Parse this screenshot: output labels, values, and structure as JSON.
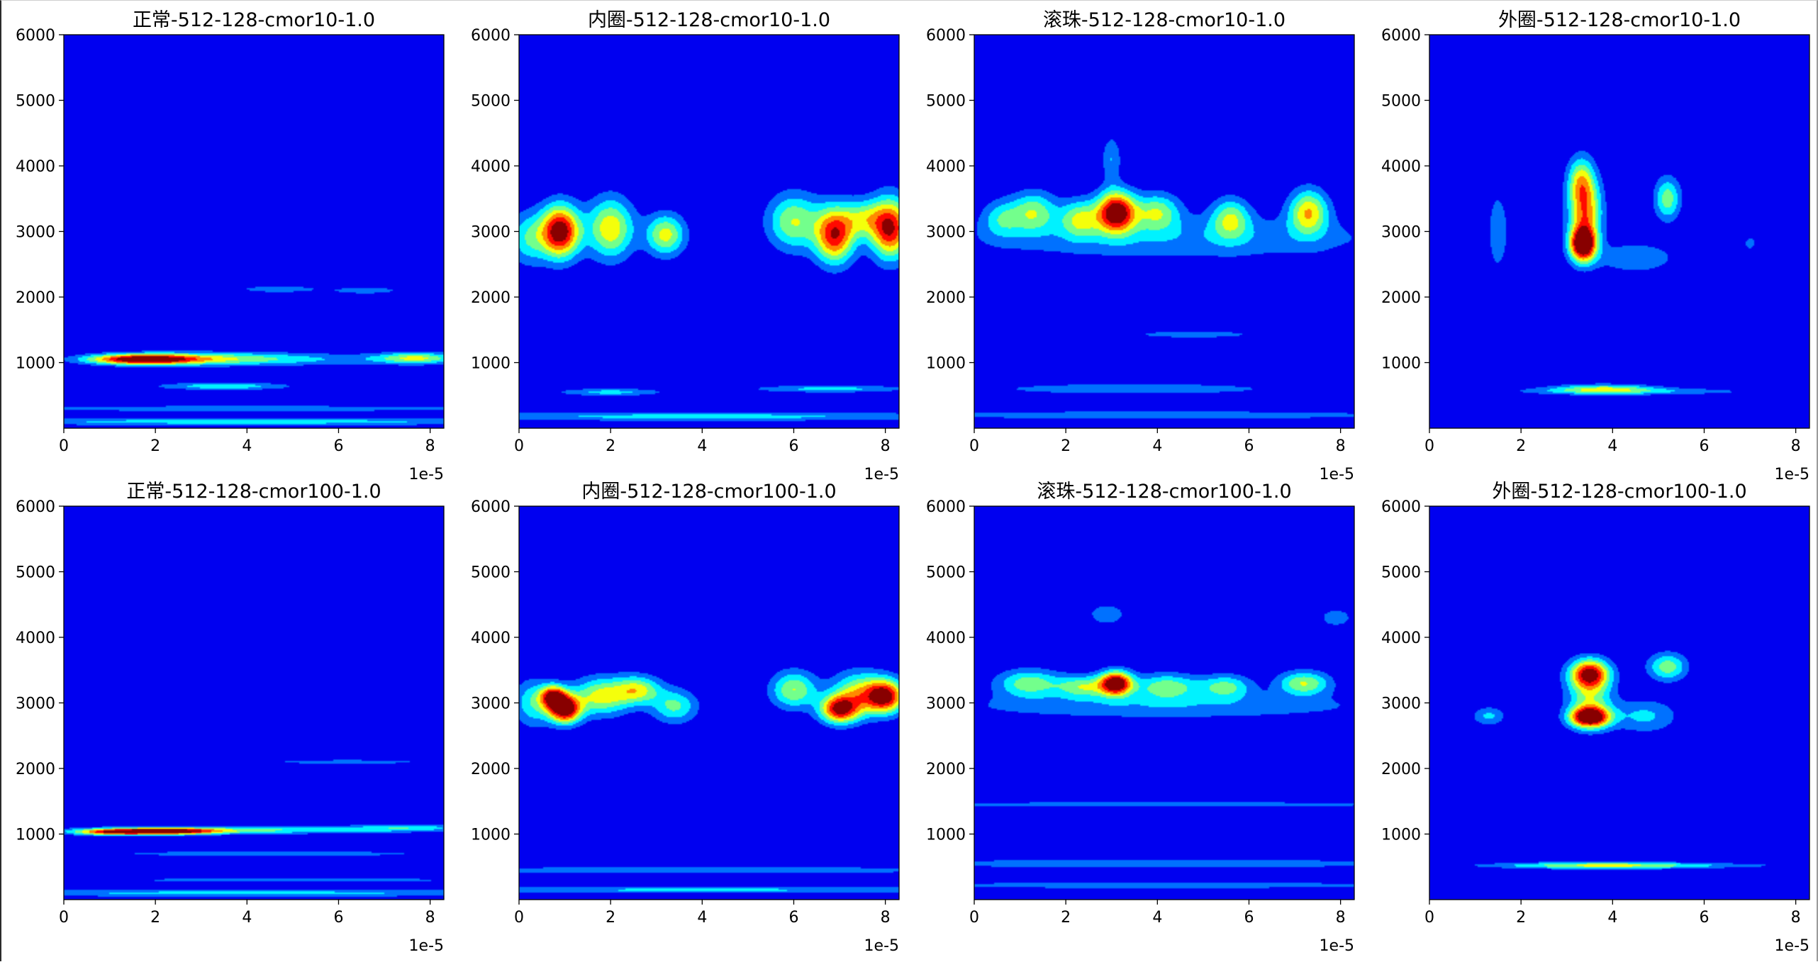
{
  "window": {
    "title": ""
  },
  "chart_data": [
    {
      "type": "heatmap",
      "title": "正常-512-128-cmor10-1.0",
      "xlabel": "",
      "ylabel": "",
      "xlim": [
        0,
        8.3
      ],
      "ylim": [
        0,
        6000
      ],
      "x_scale_factor": "1e-5",
      "xticks": [
        "0",
        "2",
        "4",
        "6",
        "8"
      ],
      "yticks": [
        "1000",
        "2000",
        "3000",
        "4000",
        "5000",
        "6000"
      ],
      "colormap": "jet",
      "blobs": [
        {
          "x": 1.7,
          "y": 1050,
          "sx": 0.8,
          "sy": 55,
          "v": 0.95
        },
        {
          "x": 3.2,
          "y": 1060,
          "sx": 1.3,
          "sy": 70,
          "v": 0.35
        },
        {
          "x": 7.7,
          "y": 1070,
          "sx": 0.6,
          "sy": 60,
          "v": 0.45
        },
        {
          "x": 5.2,
          "y": 1050,
          "sx": 2.2,
          "sy": 70,
          "v": 0.2
        },
        {
          "x": 4.7,
          "y": 2120,
          "sx": 0.6,
          "sy": 35,
          "v": 0.25
        },
        {
          "x": 6.6,
          "y": 2100,
          "sx": 0.5,
          "sy": 35,
          "v": 0.25
        },
        {
          "x": 3.5,
          "y": 640,
          "sx": 1.0,
          "sy": 40,
          "v": 0.35
        },
        {
          "x": 4.0,
          "y": 300,
          "sx": 4.5,
          "sy": 35,
          "v": 0.22
        },
        {
          "x": 4.0,
          "y": 100,
          "sx": 5,
          "sy": 40,
          "v": 0.32
        }
      ]
    },
    {
      "type": "heatmap",
      "title": "内圈-512-128-cmor10-1.0",
      "xlabel": "",
      "ylabel": "",
      "xlim": [
        0,
        8.3
      ],
      "ylim": [
        0,
        6000
      ],
      "x_scale_factor": "1e-5",
      "xticks": [
        "0",
        "2",
        "4",
        "6",
        "8"
      ],
      "yticks": [
        "1000",
        "2000",
        "3000",
        "4000",
        "5000",
        "6000"
      ],
      "colormap": "jet",
      "blobs": [
        {
          "x": 0.9,
          "y": 3000,
          "sx": 0.3,
          "sy": 280,
          "v": 1.0
        },
        {
          "x": 2.0,
          "y": 3050,
          "sx": 0.35,
          "sy": 320,
          "v": 0.6
        },
        {
          "x": 3.2,
          "y": 2950,
          "sx": 0.3,
          "sy": 220,
          "v": 0.55
        },
        {
          "x": 0.2,
          "y": 2900,
          "sx": 0.3,
          "sy": 280,
          "v": 0.35
        },
        {
          "x": 6.0,
          "y": 3150,
          "sx": 0.4,
          "sy": 300,
          "v": 0.5
        },
        {
          "x": 6.9,
          "y": 2950,
          "sx": 0.3,
          "sy": 300,
          "v": 0.85
        },
        {
          "x": 8.1,
          "y": 3050,
          "sx": 0.3,
          "sy": 320,
          "v": 0.9
        },
        {
          "x": 7.5,
          "y": 3200,
          "sx": 0.3,
          "sy": 200,
          "v": 0.4
        },
        {
          "x": 2.0,
          "y": 550,
          "sx": 0.8,
          "sy": 40,
          "v": 0.3
        },
        {
          "x": 6.8,
          "y": 600,
          "sx": 1.2,
          "sy": 40,
          "v": 0.3
        },
        {
          "x": 4.0,
          "y": 180,
          "sx": 4.5,
          "sy": 50,
          "v": 0.3
        }
      ]
    },
    {
      "type": "heatmap",
      "title": "滚珠-512-128-cmor10-1.0",
      "xlabel": "",
      "ylabel": "",
      "xlim": [
        0,
        8.3
      ],
      "ylim": [
        0,
        6000
      ],
      "x_scale_factor": "1e-5",
      "xticks": [
        "0",
        "2",
        "4",
        "6",
        "8"
      ],
      "yticks": [
        "1000",
        "2000",
        "3000",
        "4000",
        "5000",
        "6000"
      ],
      "colormap": "jet",
      "blobs": [
        {
          "x": 3.1,
          "y": 3300,
          "sx": 0.3,
          "sy": 220,
          "v": 1.0
        },
        {
          "x": 1.3,
          "y": 3300,
          "sx": 0.35,
          "sy": 220,
          "v": 0.45
        },
        {
          "x": 2.3,
          "y": 3200,
          "sx": 0.3,
          "sy": 200,
          "v": 0.45
        },
        {
          "x": 4.0,
          "y": 3300,
          "sx": 0.35,
          "sy": 200,
          "v": 0.45
        },
        {
          "x": 5.6,
          "y": 3200,
          "sx": 0.3,
          "sy": 220,
          "v": 0.45
        },
        {
          "x": 7.3,
          "y": 3300,
          "sx": 0.3,
          "sy": 240,
          "v": 0.6
        },
        {
          "x": 0.6,
          "y": 3200,
          "sx": 0.3,
          "sy": 200,
          "v": 0.3
        },
        {
          "x": 4.5,
          "y": 2900,
          "sx": 3.5,
          "sy": 250,
          "v": 0.22
        },
        {
          "x": 3.0,
          "y": 4100,
          "sx": 0.15,
          "sy": 250,
          "v": 0.25
        },
        {
          "x": 4.8,
          "y": 1430,
          "sx": 1.0,
          "sy": 40,
          "v": 0.22
        },
        {
          "x": 3.5,
          "y": 600,
          "sx": 2.2,
          "sy": 60,
          "v": 0.25
        },
        {
          "x": 4.0,
          "y": 200,
          "sx": 4.5,
          "sy": 50,
          "v": 0.22
        }
      ]
    },
    {
      "type": "heatmap",
      "title": "外圈-512-128-cmor10-1.0",
      "xlabel": "",
      "ylabel": "",
      "xlim": [
        0,
        8.3
      ],
      "ylim": [
        0,
        6000
      ],
      "x_scale_factor": "1e-5",
      "xticks": [
        "0",
        "2",
        "4",
        "6",
        "8"
      ],
      "yticks": [
        "1000",
        "2000",
        "3000",
        "4000",
        "5000",
        "6000"
      ],
      "colormap": "jet",
      "blobs": [
        {
          "x": 3.35,
          "y": 2800,
          "sx": 0.2,
          "sy": 180,
          "v": 1.0
        },
        {
          "x": 3.4,
          "y": 3300,
          "sx": 0.25,
          "sy": 380,
          "v": 0.7
        },
        {
          "x": 3.3,
          "y": 3800,
          "sx": 0.2,
          "sy": 250,
          "v": 0.4
        },
        {
          "x": 5.2,
          "y": 3500,
          "sx": 0.2,
          "sy": 230,
          "v": 0.45
        },
        {
          "x": 4.5,
          "y": 2600,
          "sx": 0.6,
          "sy": 160,
          "v": 0.25
        },
        {
          "x": 1.5,
          "y": 3000,
          "sx": 0.15,
          "sy": 400,
          "v": 0.25
        },
        {
          "x": 7.0,
          "y": 2820,
          "sx": 0.08,
          "sy": 60,
          "v": 0.25
        },
        {
          "x": 3.8,
          "y": 600,
          "sx": 0.8,
          "sy": 50,
          "v": 0.45
        },
        {
          "x": 4.5,
          "y": 560,
          "sx": 2.0,
          "sy": 40,
          "v": 0.22
        }
      ]
    },
    {
      "type": "heatmap",
      "title": "正常-512-128-cmor100-1.0",
      "xlabel": "",
      "ylabel": "",
      "xlim": [
        0,
        8.3
      ],
      "ylim": [
        0,
        6000
      ],
      "x_scale_factor": "1e-5",
      "xticks": [
        "0",
        "2",
        "4",
        "6",
        "8"
      ],
      "yticks": [
        "1000",
        "2000",
        "3000",
        "4000",
        "5000",
        "6000"
      ],
      "colormap": "jet",
      "blobs": [
        {
          "x": 2.2,
          "y": 1040,
          "sx": 0.8,
          "sy": 35,
          "v": 0.9
        },
        {
          "x": 1.0,
          "y": 1030,
          "sx": 0.6,
          "sy": 35,
          "v": 0.6
        },
        {
          "x": 4.0,
          "y": 1060,
          "sx": 2.2,
          "sy": 40,
          "v": 0.4
        },
        {
          "x": 7.5,
          "y": 1100,
          "sx": 0.9,
          "sy": 40,
          "v": 0.3
        },
        {
          "x": 4.5,
          "y": 700,
          "sx": 2.5,
          "sy": 30,
          "v": 0.25
        },
        {
          "x": 6.2,
          "y": 2100,
          "sx": 1.3,
          "sy": 25,
          "v": 0.22
        },
        {
          "x": 4.0,
          "y": 100,
          "sx": 5,
          "sy": 40,
          "v": 0.3
        },
        {
          "x": 5.0,
          "y": 300,
          "sx": 3.0,
          "sy": 25,
          "v": 0.22
        }
      ]
    },
    {
      "type": "heatmap",
      "title": "内圈-512-128-cmor100-1.0",
      "xlabel": "",
      "ylabel": "",
      "xlim": [
        0,
        8.3
      ],
      "ylim": [
        0,
        6000
      ],
      "x_scale_factor": "1e-5",
      "xticks": [
        "0",
        "2",
        "4",
        "6",
        "8"
      ],
      "yticks": [
        "1000",
        "2000",
        "3000",
        "4000",
        "5000",
        "6000"
      ],
      "colormap": "jet",
      "blobs": [
        {
          "x": 1.0,
          "y": 2900,
          "sx": 0.25,
          "sy": 150,
          "v": 1.0
        },
        {
          "x": 0.75,
          "y": 3100,
          "sx": 0.2,
          "sy": 120,
          "v": 0.8
        },
        {
          "x": 1.8,
          "y": 3100,
          "sx": 0.45,
          "sy": 200,
          "v": 0.55
        },
        {
          "x": 2.6,
          "y": 3200,
          "sx": 0.35,
          "sy": 150,
          "v": 0.5
        },
        {
          "x": 3.4,
          "y": 2950,
          "sx": 0.35,
          "sy": 180,
          "v": 0.4
        },
        {
          "x": 6.0,
          "y": 3200,
          "sx": 0.35,
          "sy": 200,
          "v": 0.5
        },
        {
          "x": 7.0,
          "y": 2900,
          "sx": 0.3,
          "sy": 150,
          "v": 0.85
        },
        {
          "x": 8.0,
          "y": 3100,
          "sx": 0.3,
          "sy": 180,
          "v": 0.9
        },
        {
          "x": 7.4,
          "y": 3150,
          "sx": 0.4,
          "sy": 230,
          "v": 0.5
        },
        {
          "x": 0.3,
          "y": 3000,
          "sx": 0.3,
          "sy": 250,
          "v": 0.35
        },
        {
          "x": 4.0,
          "y": 450,
          "sx": 4.5,
          "sy": 40,
          "v": 0.25
        },
        {
          "x": 4.0,
          "y": 150,
          "sx": 4.5,
          "sy": 40,
          "v": 0.28
        }
      ]
    },
    {
      "type": "heatmap",
      "title": "滚珠-512-128-cmor100-1.0",
      "xlabel": "",
      "ylabel": "",
      "xlim": [
        0,
        8.3
      ],
      "ylim": [
        0,
        6000
      ],
      "x_scale_factor": "1e-5",
      "xticks": [
        "0",
        "2",
        "4",
        "6",
        "8"
      ],
      "yticks": [
        "1000",
        "2000",
        "3000",
        "4000",
        "5000",
        "6000"
      ],
      "colormap": "jet",
      "blobs": [
        {
          "x": 3.1,
          "y": 3300,
          "sx": 0.25,
          "sy": 130,
          "v": 1.0
        },
        {
          "x": 1.2,
          "y": 3300,
          "sx": 0.5,
          "sy": 150,
          "v": 0.45
        },
        {
          "x": 2.4,
          "y": 3250,
          "sx": 0.4,
          "sy": 120,
          "v": 0.45
        },
        {
          "x": 4.2,
          "y": 3250,
          "sx": 0.5,
          "sy": 140,
          "v": 0.45
        },
        {
          "x": 5.5,
          "y": 3250,
          "sx": 0.4,
          "sy": 130,
          "v": 0.4
        },
        {
          "x": 7.2,
          "y": 3300,
          "sx": 0.4,
          "sy": 130,
          "v": 0.5
        },
        {
          "x": 4.2,
          "y": 2950,
          "sx": 3.5,
          "sy": 150,
          "v": 0.22
        },
        {
          "x": 4.0,
          "y": 1450,
          "sx": 4.0,
          "sy": 30,
          "v": 0.25
        },
        {
          "x": 4.0,
          "y": 550,
          "sx": 4.5,
          "sy": 50,
          "v": 0.25
        },
        {
          "x": 4.0,
          "y": 220,
          "sx": 4.5,
          "sy": 40,
          "v": 0.22
        },
        {
          "x": 2.9,
          "y": 4350,
          "sx": 0.3,
          "sy": 120,
          "v": 0.22
        },
        {
          "x": 7.9,
          "y": 4300,
          "sx": 0.25,
          "sy": 100,
          "v": 0.22
        }
      ]
    },
    {
      "type": "heatmap",
      "title": "外圈-512-128-cmor100-1.0",
      "xlabel": "",
      "ylabel": "",
      "xlim": [
        0,
        8.3
      ],
      "ylim": [
        0,
        6000
      ],
      "x_scale_factor": "1e-5",
      "xticks": [
        "0",
        "2",
        "4",
        "6",
        "8"
      ],
      "yticks": [
        "1000",
        "2000",
        "3000",
        "4000",
        "5000",
        "6000"
      ],
      "colormap": "jet",
      "blobs": [
        {
          "x": 3.5,
          "y": 2780,
          "sx": 0.3,
          "sy": 110,
          "v": 1.0
        },
        {
          "x": 3.5,
          "y": 3450,
          "sx": 0.3,
          "sy": 150,
          "v": 0.8
        },
        {
          "x": 3.5,
          "y": 3100,
          "sx": 0.35,
          "sy": 300,
          "v": 0.45
        },
        {
          "x": 5.2,
          "y": 3550,
          "sx": 0.3,
          "sy": 150,
          "v": 0.45
        },
        {
          "x": 4.7,
          "y": 2800,
          "sx": 0.5,
          "sy": 180,
          "v": 0.28
        },
        {
          "x": 1.3,
          "y": 2800,
          "sx": 0.25,
          "sy": 100,
          "v": 0.28
        },
        {
          "x": 3.8,
          "y": 520,
          "sx": 1.4,
          "sy": 40,
          "v": 0.35
        },
        {
          "x": 4.5,
          "y": 520,
          "sx": 2.5,
          "sy": 30,
          "v": 0.22
        }
      ]
    }
  ]
}
